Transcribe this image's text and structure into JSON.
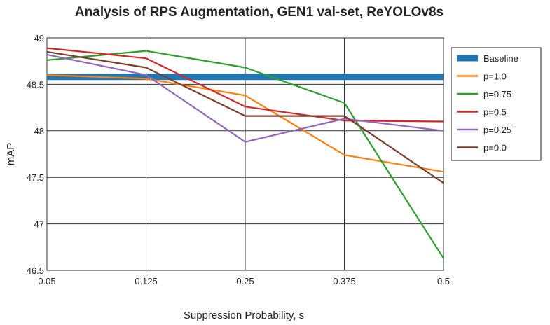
{
  "chart_data": {
    "type": "line",
    "title": "Analysis of RPS Augmentation, GEN1 val-set, ReYOLOv8s",
    "xlabel": "Suppression Probability, s",
    "ylabel": "mAP",
    "x": [
      "0.05",
      "0.125",
      "0.25",
      "0.375",
      "0.5"
    ],
    "y_ticks": [
      "49",
      "48.5",
      "48",
      "47.5",
      "47",
      "46.5"
    ],
    "ylim": [
      46.5,
      49
    ],
    "grid": "vertical and horizontal",
    "legend_position": "right",
    "series": [
      {
        "name": "Baseline",
        "color": "#1f77b4",
        "values": [
          48.58,
          48.58,
          48.58,
          48.58,
          48.58
        ]
      },
      {
        "name": "p=1.0",
        "color": "#ff7f0e",
        "values": [
          48.6,
          48.56,
          48.38,
          47.74,
          47.56
        ]
      },
      {
        "name": "p=0.75",
        "color": "#2ca02c",
        "values": [
          48.76,
          48.86,
          48.68,
          48.3,
          46.63
        ]
      },
      {
        "name": "p=0.5",
        "color": "#d62728",
        "values": [
          48.89,
          48.78,
          48.26,
          48.11,
          48.1
        ]
      },
      {
        "name": "p=0.25",
        "color": "#9467bd",
        "values": [
          48.82,
          48.6,
          47.88,
          48.13,
          48.0
        ]
      },
      {
        "name": "p=0.0",
        "color": "#7b3f2e",
        "values": [
          48.85,
          48.68,
          48.16,
          48.16,
          47.44
        ]
      }
    ]
  }
}
